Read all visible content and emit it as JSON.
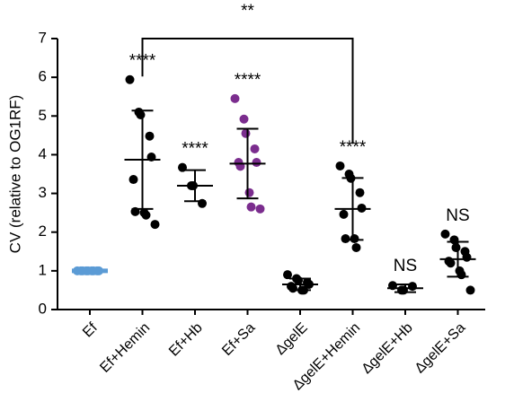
{
  "chart_data": {
    "type": "dot_plot",
    "y_label": "CV (relative to OG1RF)",
    "categories": [
      "Ef",
      "Ef+Hemin",
      "Ef+Hb",
      "Ef+Sa",
      "ΔgelE",
      "ΔgelE+Hemin",
      "ΔgelE+Hb",
      "ΔgelE+Sa"
    ],
    "values": [
      [
        1,
        1,
        1,
        1,
        1,
        1,
        1,
        1,
        1
      ],
      [
        5.94,
        5.1,
        5.03,
        4.48,
        3.94,
        3.36,
        2.53,
        2.5,
        2.44,
        2.2
      ],
      [
        3.67,
        3.2,
        3.2,
        2.74
      ],
      [
        5.45,
        4.92,
        4.55,
        4.15,
        3.8,
        3.8,
        3.7,
        3.02,
        2.65,
        2.6
      ],
      [
        0.9,
        0.8,
        0.75,
        0.7,
        0.65,
        0.6,
        0.55,
        0.5,
        0.5
      ],
      [
        3.71,
        3.5,
        3.39,
        3.02,
        2.62,
        2.46,
        1.83,
        1.83,
        1.6
      ],
      [
        0.62,
        0.5,
        0.5,
        0.6
      ],
      [
        1.95,
        1.8,
        1.6,
        1.5,
        1.35,
        1.25,
        1.2,
        1.0,
        0.9,
        0.5
      ]
    ],
    "means": [
      1,
      3.87,
      3.2,
      3.77,
      0.65,
      2.6,
      0.55,
      1.3
    ],
    "sds": [
      0,
      1.27,
      0.4,
      0.9,
      0.15,
      0.8,
      0.1,
      0.45
    ],
    "point_colors": [
      "#5b9bd5",
      "#000000",
      "#000000",
      "#7b2d8e",
      "#000000",
      "#000000",
      "#000000",
      "#000000"
    ],
    "mean_colors": [
      "#5b9bd5",
      "#000000",
      "#000000",
      "#000000",
      "#000000",
      "#000000",
      "#000000",
      "#000000"
    ],
    "significance": [
      null,
      "****",
      "****",
      "****",
      null,
      "****",
      "NS",
      "NS"
    ],
    "bracket": {
      "label": "**",
      "from": 1,
      "to": 5
    },
    "ylim": [
      0,
      7
    ],
    "yticks": [
      0,
      1,
      2,
      3,
      4,
      5,
      6,
      7
    ]
  }
}
